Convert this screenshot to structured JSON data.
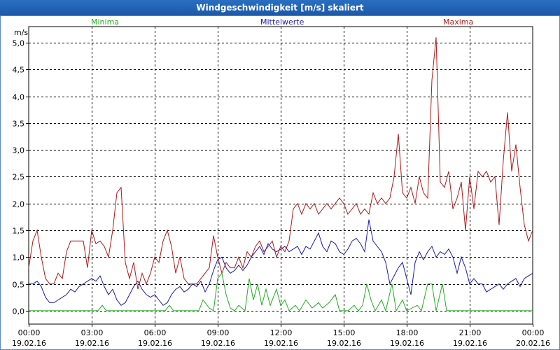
{
  "window": {
    "title": "Windgeschwindigkeit [m/s] skaliert"
  },
  "chart_data": {
    "type": "line",
    "title": "Windgeschwindigkeit [m/s] skaliert",
    "ylabel": "m/s",
    "ylim": [
      -0.25,
      5.3
    ],
    "yticks": [
      0.0,
      0.5,
      1.0,
      1.5,
      2.0,
      2.5,
      3.0,
      3.5,
      4.0,
      4.5,
      5.0
    ],
    "ytick_labels": [
      "0,0",
      "0,5",
      "1,0",
      "1,5",
      "2,0",
      "2,5",
      "3,0",
      "3,5",
      "4,0",
      "4,5",
      "5,0"
    ],
    "xlim": [
      0,
      24
    ],
    "xticks": [
      {
        "t": 0,
        "time": "00:00",
        "date": "19.02.16"
      },
      {
        "t": 3,
        "time": "03:00",
        "date": "19.02.16"
      },
      {
        "t": 6,
        "time": "06:00",
        "date": "19.02.16"
      },
      {
        "t": 9,
        "time": "09:00",
        "date": "19.02.16"
      },
      {
        "t": 12,
        "time": "12:00",
        "date": "19.02.16"
      },
      {
        "t": 15,
        "time": "15:00",
        "date": "19.02.16"
      },
      {
        "t": 18,
        "time": "18:00",
        "date": "19.02.16"
      },
      {
        "t": 21,
        "time": "21:00",
        "date": "19.02.16"
      },
      {
        "t": 24,
        "time": "00:00",
        "date": "20.02.16"
      }
    ],
    "grid": true,
    "series": [
      {
        "name": "Minima",
        "color": "#22aa22",
        "points": [
          [
            0,
            0
          ],
          [
            3.3,
            0
          ],
          [
            3.5,
            0.1
          ],
          [
            3.7,
            0
          ],
          [
            6.5,
            0
          ],
          [
            6.7,
            0.1
          ],
          [
            6.9,
            0
          ],
          [
            8.1,
            0
          ],
          [
            8.3,
            0.2
          ],
          [
            8.6,
            0.05
          ],
          [
            8.8,
            0
          ],
          [
            9.0,
            0.6
          ],
          [
            9.2,
            0.7
          ],
          [
            9.4,
            0.3
          ],
          [
            9.6,
            0.05
          ],
          [
            9.8,
            0
          ],
          [
            10.0,
            0.1
          ],
          [
            10.3,
            0
          ],
          [
            10.5,
            0.6
          ],
          [
            10.7,
            0.2
          ],
          [
            10.9,
            0.5
          ],
          [
            11.1,
            0.1
          ],
          [
            11.3,
            0.4
          ],
          [
            11.5,
            0.1
          ],
          [
            11.8,
            0.4
          ],
          [
            12.0,
            0.1
          ],
          [
            12.2,
            0.2
          ],
          [
            12.4,
            0
          ],
          [
            12.7,
            0.1
          ],
          [
            12.9,
            0
          ],
          [
            13.2,
            0.2
          ],
          [
            13.5,
            0.05
          ],
          [
            13.8,
            0.15
          ],
          [
            14.0,
            0.05
          ],
          [
            14.3,
            0.15
          ],
          [
            14.6,
            0.3
          ],
          [
            14.8,
            0
          ],
          [
            15.2,
            0
          ],
          [
            15.5,
            0.1
          ],
          [
            15.7,
            0
          ],
          [
            15.9,
            0.1
          ],
          [
            16.1,
            0.5
          ],
          [
            16.3,
            0.2
          ],
          [
            16.5,
            0
          ],
          [
            16.8,
            0.2
          ],
          [
            17.0,
            0
          ],
          [
            17.3,
            0.5
          ],
          [
            17.5,
            0
          ],
          [
            17.8,
            0.2
          ],
          [
            18.0,
            0
          ],
          [
            18.5,
            0.1
          ],
          [
            18.7,
            0
          ],
          [
            19.0,
            0.5
          ],
          [
            19.2,
            0.5
          ],
          [
            19.4,
            0
          ],
          [
            19.7,
            0.5
          ],
          [
            19.9,
            0
          ],
          [
            24,
            0
          ]
        ]
      },
      {
        "name": "Mittelwerte",
        "color": "#1a1aaa",
        "points": [
          [
            0,
            0.5
          ],
          [
            0.2,
            0.5
          ],
          [
            0.4,
            0.55
          ],
          [
            0.6,
            0.45
          ],
          [
            0.8,
            0.25
          ],
          [
            1.0,
            0.15
          ],
          [
            1.2,
            0.15
          ],
          [
            1.4,
            0.2
          ],
          [
            1.6,
            0.25
          ],
          [
            1.8,
            0.3
          ],
          [
            2.0,
            0.4
          ],
          [
            2.2,
            0.35
          ],
          [
            2.4,
            0.45
          ],
          [
            2.6,
            0.5
          ],
          [
            2.8,
            0.55
          ],
          [
            3.0,
            0.6
          ],
          [
            3.2,
            0.55
          ],
          [
            3.4,
            0.65
          ],
          [
            3.6,
            0.45
          ],
          [
            3.8,
            0.3
          ],
          [
            4.0,
            0.4
          ],
          [
            4.2,
            0.2
          ],
          [
            4.4,
            0.1
          ],
          [
            4.6,
            0.15
          ],
          [
            4.8,
            0.3
          ],
          [
            5.0,
            0.45
          ],
          [
            5.2,
            0.55
          ],
          [
            5.4,
            0.4
          ],
          [
            5.6,
            0.3
          ],
          [
            5.8,
            0.25
          ],
          [
            6.0,
            0.3
          ],
          [
            6.2,
            0.2
          ],
          [
            6.4,
            0.1
          ],
          [
            6.6,
            0.15
          ],
          [
            6.8,
            0.3
          ],
          [
            7.0,
            0.4
          ],
          [
            7.2,
            0.45
          ],
          [
            7.4,
            0.35
          ],
          [
            7.6,
            0.4
          ],
          [
            7.8,
            0.5
          ],
          [
            8.0,
            0.45
          ],
          [
            8.2,
            0.55
          ],
          [
            8.4,
            0.35
          ],
          [
            8.6,
            0.5
          ],
          [
            8.8,
            0.75
          ],
          [
            9.0,
            0.95
          ],
          [
            9.2,
            1.0
          ],
          [
            9.4,
            0.8
          ],
          [
            9.6,
            0.7
          ],
          [
            9.8,
            0.75
          ],
          [
            10.0,
            0.85
          ],
          [
            10.2,
            0.75
          ],
          [
            10.4,
            0.85
          ],
          [
            10.6,
            1.0
          ],
          [
            10.8,
            1.1
          ],
          [
            11.0,
            1.2
          ],
          [
            11.2,
            1.05
          ],
          [
            11.4,
            1.25
          ],
          [
            11.6,
            1.15
          ],
          [
            11.8,
            1.1
          ],
          [
            12.0,
            1.15
          ],
          [
            12.2,
            1.2
          ],
          [
            12.4,
            1.1
          ],
          [
            12.6,
            1.15
          ],
          [
            12.8,
            1.2
          ],
          [
            13.0,
            1.05
          ],
          [
            13.2,
            1.2
          ],
          [
            13.4,
            1.15
          ],
          [
            13.6,
            1.3
          ],
          [
            13.8,
            1.45
          ],
          [
            14.0,
            1.2
          ],
          [
            14.2,
            1.1
          ],
          [
            14.4,
            1.3
          ],
          [
            14.6,
            1.25
          ],
          [
            14.8,
            1.1
          ],
          [
            15.0,
            1.05
          ],
          [
            15.2,
            1.15
          ],
          [
            15.4,
            1.3
          ],
          [
            15.6,
            1.35
          ],
          [
            15.8,
            1.25
          ],
          [
            16.0,
            1.1
          ],
          [
            16.2,
            1.7
          ],
          [
            16.4,
            1.3
          ],
          [
            16.6,
            1.2
          ],
          [
            16.8,
            1.1
          ],
          [
            17.0,
            0.9
          ],
          [
            17.2,
            0.5
          ],
          [
            17.4,
            0.65
          ],
          [
            17.6,
            0.8
          ],
          [
            17.8,
            0.9
          ],
          [
            18.0,
            0.6
          ],
          [
            18.2,
            0.3
          ],
          [
            18.4,
            0.9
          ],
          [
            18.6,
            1.1
          ],
          [
            18.8,
            0.95
          ],
          [
            19.0,
            1.1
          ],
          [
            19.2,
            1.2
          ],
          [
            19.4,
            1.0
          ],
          [
            19.6,
            1.1
          ],
          [
            19.8,
            1.05
          ],
          [
            20.0,
            1.15
          ],
          [
            20.2,
            1.0
          ],
          [
            20.4,
            0.7
          ],
          [
            20.6,
            1.0
          ],
          [
            20.8,
            0.8
          ],
          [
            21.0,
            0.5
          ],
          [
            21.2,
            0.6
          ],
          [
            21.4,
            0.5
          ],
          [
            21.6,
            0.5
          ],
          [
            21.8,
            0.35
          ],
          [
            22.0,
            0.4
          ],
          [
            22.2,
            0.45
          ],
          [
            22.4,
            0.5
          ],
          [
            22.6,
            0.4
          ],
          [
            22.8,
            0.5
          ],
          [
            23.0,
            0.55
          ],
          [
            23.2,
            0.6
          ],
          [
            23.4,
            0.45
          ],
          [
            23.6,
            0.6
          ],
          [
            23.8,
            0.65
          ],
          [
            24.0,
            0.7
          ]
        ]
      },
      {
        "name": "Maxima",
        "color": "#aa1a1a",
        "points": [
          [
            0,
            0.8
          ],
          [
            0.2,
            1.3
          ],
          [
            0.4,
            1.5
          ],
          [
            0.6,
            1.0
          ],
          [
            0.8,
            0.6
          ],
          [
            1.0,
            0.5
          ],
          [
            1.2,
            0.5
          ],
          [
            1.4,
            0.7
          ],
          [
            1.6,
            0.6
          ],
          [
            1.8,
            1.1
          ],
          [
            2.0,
            1.3
          ],
          [
            2.2,
            1.3
          ],
          [
            2.4,
            1.3
          ],
          [
            2.6,
            1.3
          ],
          [
            2.8,
            0.8
          ],
          [
            3.0,
            1.5
          ],
          [
            3.2,
            1.25
          ],
          [
            3.4,
            1.3
          ],
          [
            3.6,
            1.2
          ],
          [
            3.8,
            1.0
          ],
          [
            4.0,
            1.5
          ],
          [
            4.2,
            2.2
          ],
          [
            4.4,
            2.3
          ],
          [
            4.6,
            0.9
          ],
          [
            4.8,
            0.6
          ],
          [
            5.0,
            0.9
          ],
          [
            5.2,
            0.4
          ],
          [
            5.4,
            0.7
          ],
          [
            5.6,
            0.5
          ],
          [
            5.8,
            0.7
          ],
          [
            6.0,
            1.0
          ],
          [
            6.2,
            0.9
          ],
          [
            6.4,
            1.3
          ],
          [
            6.6,
            1.5
          ],
          [
            6.8,
            1.2
          ],
          [
            7.0,
            0.7
          ],
          [
            7.2,
            1.0
          ],
          [
            7.4,
            0.6
          ],
          [
            7.6,
            0.5
          ],
          [
            7.8,
            0.5
          ],
          [
            8.0,
            0.5
          ],
          [
            8.2,
            0.6
          ],
          [
            8.4,
            0.7
          ],
          [
            8.6,
            0.8
          ],
          [
            8.8,
            1.4
          ],
          [
            9.0,
            1.0
          ],
          [
            9.2,
            0.7
          ],
          [
            9.4,
            0.9
          ],
          [
            9.6,
            0.8
          ],
          [
            9.8,
            0.8
          ],
          [
            10.0,
            1.0
          ],
          [
            10.2,
            0.8
          ],
          [
            10.4,
            1.1
          ],
          [
            10.6,
            1.0
          ],
          [
            10.8,
            1.2
          ],
          [
            11.0,
            1.3
          ],
          [
            11.2,
            1.1
          ],
          [
            11.4,
            1.2
          ],
          [
            11.6,
            1.3
          ],
          [
            11.8,
            1.0
          ],
          [
            12.0,
            1.2
          ],
          [
            12.2,
            1.1
          ],
          [
            12.4,
            1.3
          ],
          [
            12.6,
            1.9
          ],
          [
            12.8,
            2.0
          ],
          [
            13.0,
            1.8
          ],
          [
            13.2,
            2.0
          ],
          [
            13.4,
            1.9
          ],
          [
            13.6,
            2.0
          ],
          [
            13.8,
            1.8
          ],
          [
            14.0,
            1.9
          ],
          [
            14.2,
            2.0
          ],
          [
            14.4,
            1.9
          ],
          [
            14.6,
            2.0
          ],
          [
            14.8,
            2.1
          ],
          [
            15.0,
            2.0
          ],
          [
            15.2,
            1.8
          ],
          [
            15.4,
            1.9
          ],
          [
            15.6,
            2.0
          ],
          [
            15.8,
            1.8
          ],
          [
            16.0,
            1.9
          ],
          [
            16.2,
            1.8
          ],
          [
            16.4,
            2.2
          ],
          [
            16.6,
            2.0
          ],
          [
            16.8,
            2.1
          ],
          [
            17.0,
            2.0
          ],
          [
            17.2,
            2.1
          ],
          [
            17.4,
            2.5
          ],
          [
            17.6,
            3.3
          ],
          [
            17.8,
            2.2
          ],
          [
            18.0,
            2.1
          ],
          [
            18.2,
            2.3
          ],
          [
            18.4,
            2.0
          ],
          [
            18.6,
            2.5
          ],
          [
            18.8,
            2.2
          ],
          [
            19.0,
            2.1
          ],
          [
            19.2,
            4.3
          ],
          [
            19.4,
            5.1
          ],
          [
            19.6,
            2.4
          ],
          [
            19.8,
            2.3
          ],
          [
            20.0,
            2.6
          ],
          [
            20.2,
            1.9
          ],
          [
            20.4,
            2.1
          ],
          [
            20.6,
            2.4
          ],
          [
            20.8,
            1.5
          ],
          [
            21.0,
            2.5
          ],
          [
            21.2,
            1.9
          ],
          [
            21.4,
            2.6
          ],
          [
            21.6,
            2.5
          ],
          [
            21.8,
            2.6
          ],
          [
            22.0,
            2.4
          ],
          [
            22.2,
            2.5
          ],
          [
            22.4,
            1.6
          ],
          [
            22.6,
            2.8
          ],
          [
            22.8,
            3.7
          ],
          [
            23.0,
            2.6
          ],
          [
            23.2,
            3.1
          ],
          [
            23.4,
            2.3
          ],
          [
            23.6,
            1.6
          ],
          [
            23.8,
            1.3
          ],
          [
            24.0,
            1.5
          ]
        ]
      }
    ]
  }
}
